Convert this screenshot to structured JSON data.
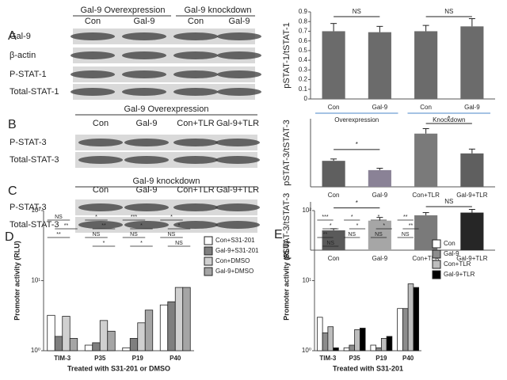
{
  "blots": [
    {
      "letter": "A",
      "headers": [
        "Gal-9 Overexpression",
        "Gal-9 knockdown"
      ],
      "lanes": [
        "Con",
        "Gal-9",
        "Con",
        "Gal-9"
      ],
      "rows": [
        "Gal-9",
        "β-actin",
        "P-STAT-1",
        "Total-STAT-1"
      ]
    },
    {
      "letter": "B",
      "headers": [
        "Gal-9 Overexpression"
      ],
      "lanes": [
        "Con",
        "Gal-9",
        "Con+TLR",
        "Gal-9+TLR"
      ],
      "rows": [
        "P-STAT-3",
        "Total-STAT-3"
      ]
    },
    {
      "letter": "C",
      "headers": [
        "Gal-9 knockdown"
      ],
      "lanes": [
        "Con",
        "Gal-9",
        "Con+TLR",
        "Gal-9+TLR"
      ],
      "rows": [
        "P-STAT-3",
        "Total-STAT-3"
      ]
    }
  ],
  "chart_data": [
    {
      "type": "bar",
      "y_label": "pSTAT-1/tSTAT-1",
      "categories": [
        "Con",
        "Gal-9",
        "Con",
        "Gal-9"
      ],
      "values": [
        0.7,
        0.69,
        0.7,
        0.75
      ],
      "errors": [
        0.08,
        0.06,
        0.06,
        0.08
      ],
      "colors": [
        "#6b6b6b",
        "#6b6b6b",
        "#6b6b6b",
        "#6b6b6b"
      ],
      "ylim": [
        0,
        0.9
      ],
      "yticks": [
        0,
        0.1,
        0.2,
        0.3,
        0.4,
        0.5,
        0.6,
        0.7,
        0.8,
        0.9
      ],
      "annotations": [
        "NS",
        "NS"
      ],
      "groups": [
        "Overexpression",
        "Knockdown"
      ]
    },
    {
      "type": "bar",
      "y_label": "pSTAT-3/tSTAT-3",
      "categories": [
        "Con",
        "Gal-9",
        "Con+TLR",
        "Gal-9+TLR"
      ],
      "values": [
        0.42,
        0.27,
        0.86,
        0.54
      ],
      "errors": [
        0.03,
        0.03,
        0.08,
        0.07
      ],
      "colors": [
        "#5f5f5f",
        "#8a8296",
        "#7a7a7a",
        "#5f5f5f"
      ],
      "ylim": [
        0,
        1.1
      ],
      "annotations": [
        "*",
        "*"
      ]
    },
    {
      "type": "bar",
      "y_label": "pSTAT-3/tSTAT-3",
      "categories": [
        "Con",
        "Gal-9",
        "Con+TLR",
        "Gal-9+TLR"
      ],
      "values": [
        0.37,
        0.55,
        0.65,
        0.7
      ],
      "errors": [
        0.03,
        0.06,
        0.05,
        0.06
      ],
      "colors": [
        "#5a5a5a",
        "#a6a6a6",
        "#7a7a7a",
        "#262626"
      ],
      "ylim": [
        0,
        0.9
      ],
      "annotations": [
        "*",
        "NS"
      ]
    },
    {
      "type": "grouped_bar",
      "panel": "D",
      "y_label": "Promoter activity (RLU)",
      "x_label": "Treated with S31-201 or DMSO",
      "categories": [
        "TIM-3",
        "P35",
        "P19",
        "P40"
      ],
      "log_scale": true,
      "ylim": [
        1,
        100
      ],
      "yticks": [
        {
          "value": 1,
          "label": "10⁰"
        },
        {
          "value": 10,
          "label": "10¹"
        },
        {
          "value": 100,
          "label": "10²"
        }
      ],
      "series": [
        {
          "name": "Con+S31-201",
          "color": "#ffffff",
          "values": [
            3.2,
            1.2,
            1.1,
            4.5
          ]
        },
        {
          "name": "Gal-9+S31-201",
          "color": "#7f7f7f",
          "values": [
            1.6,
            1.3,
            1.5,
            5.0
          ]
        },
        {
          "name": "Con+DMSO",
          "color": "#d0d0d0",
          "values": [
            3.1,
            2.7,
            2.5,
            8.0
          ]
        },
        {
          "name": "Gal-9+DMSO",
          "color": "#a5a5a5",
          "values": [
            1.5,
            1.9,
            3.8,
            8.0
          ]
        }
      ],
      "annotations": [
        [
          "NS",
          "**",
          "**"
        ],
        [
          "*",
          "**",
          "NS",
          "*"
        ],
        [
          "***",
          "*",
          "NS",
          "*"
        ],
        [
          "*",
          "*",
          "NS",
          "NS"
        ]
      ]
    },
    {
      "type": "grouped_bar",
      "panel": "E",
      "y_label": "Promoter activity (RLU)",
      "x_label": "Treated with S31-201",
      "categories": [
        "TIM-3",
        "P35",
        "P19",
        "P40"
      ],
      "log_scale": true,
      "ylim": [
        1,
        100
      ],
      "yticks": [
        {
          "value": 1,
          "label": "10⁰"
        },
        {
          "value": 10,
          "label": "10¹"
        },
        {
          "value": 100,
          "label": "10²"
        }
      ],
      "series": [
        {
          "name": "Con",
          "color": "#ffffff",
          "values": [
            3.0,
            1.1,
            1.2,
            4.0
          ]
        },
        {
          "name": "Gal-9",
          "color": "#8c8c8c",
          "values": [
            1.8,
            1.2,
            1.1,
            4.0
          ]
        },
        {
          "name": "Con+TLR",
          "color": "#bdbdbd",
          "values": [
            2.2,
            2.0,
            1.5,
            9.0
          ]
        },
        {
          "name": "Gal-9+TLR",
          "color": "#000000",
          "values": [
            1.1,
            2.1,
            1.6,
            8.0
          ]
        }
      ],
      "annotations": [
        [
          "***",
          "*",
          "**",
          "NS"
        ],
        [
          "*",
          "*",
          "NS"
        ],
        [
          "*",
          "*",
          "NS"
        ],
        [
          "**",
          "**",
          "NS"
        ]
      ]
    }
  ]
}
